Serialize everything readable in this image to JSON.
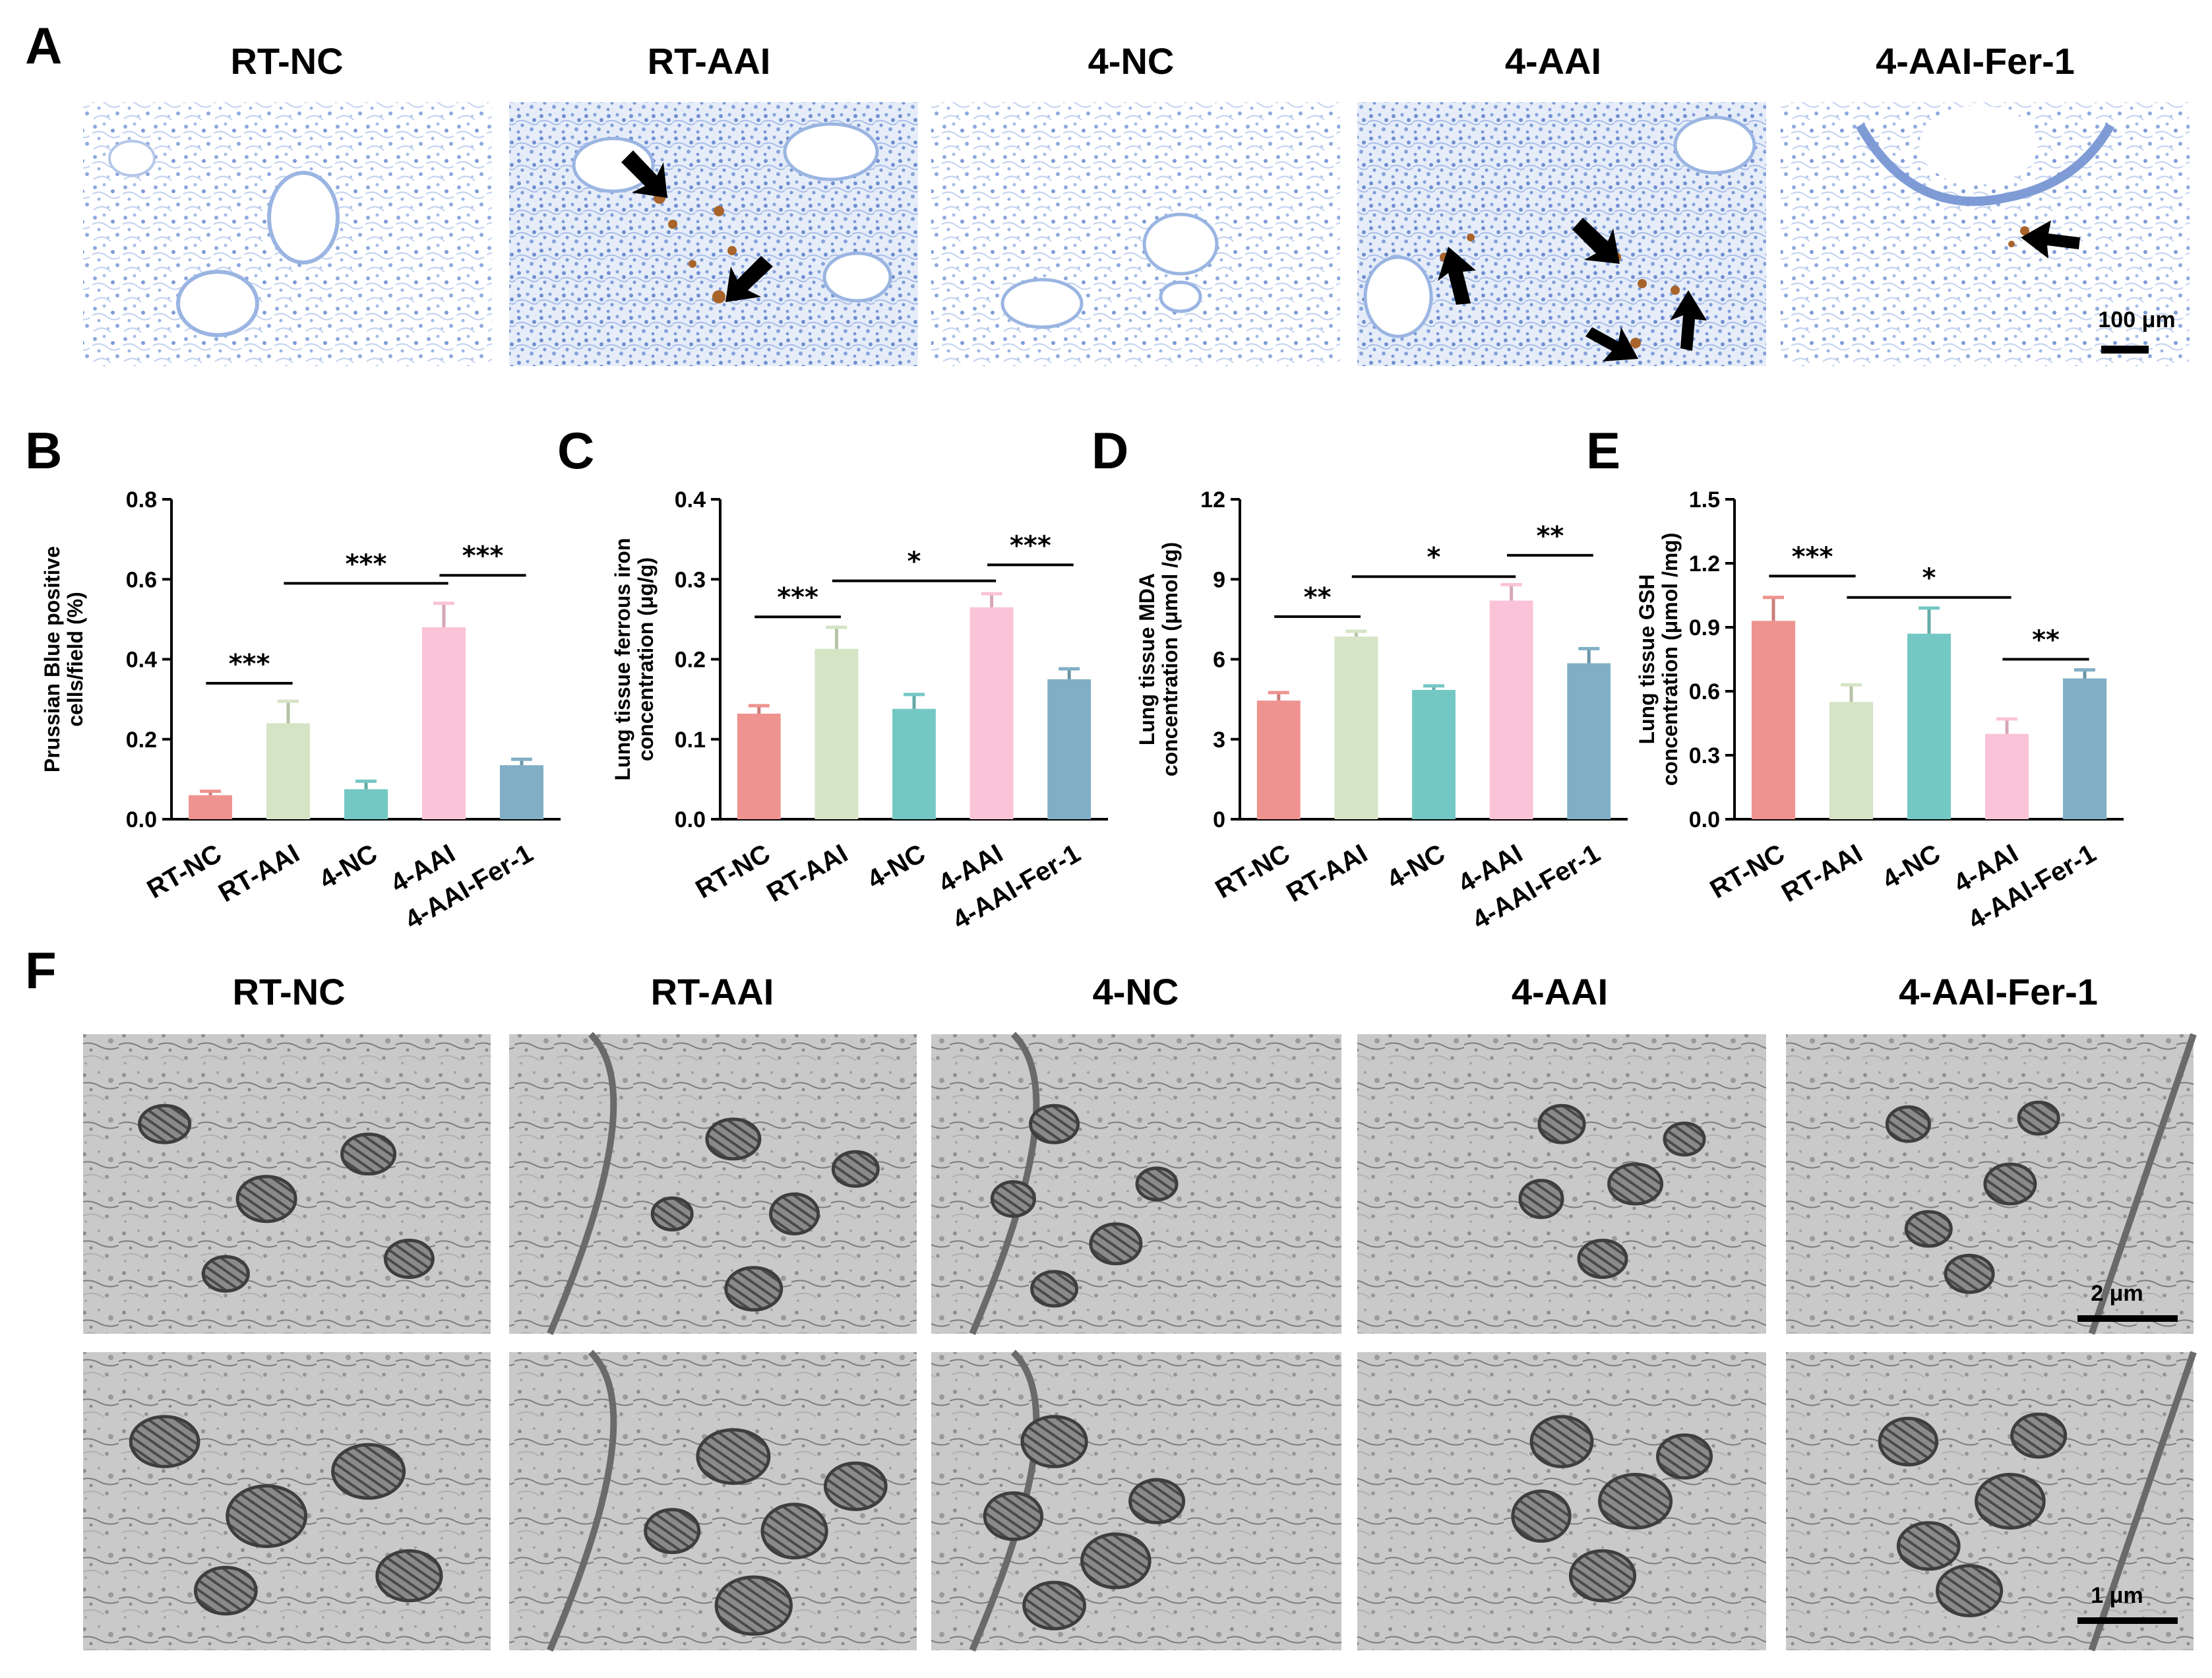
{
  "panels": {
    "A": "A",
    "B": "B",
    "C": "C",
    "D": "D",
    "E": "E",
    "F": "F"
  },
  "groups": [
    "RT-NC",
    "RT-AAI",
    "4-NC",
    "4-AAI",
    "4-AAI-Fer-1"
  ],
  "scale_bars": {
    "histology": "100 μm",
    "tem_top": "2 μm",
    "tem_bottom": "1 μm"
  },
  "image_tiles": {
    "histology_icon": "lung-histology-micrograph",
    "tem_icon": "tem-micrograph",
    "arrow_icon": "black-arrow-icon"
  },
  "colors": {
    "RT-NC": "#EE938F",
    "RT-AAI": "#D5E4C5",
    "4-NC": "#74C8C4",
    "4-AAI": "#FBC3D8",
    "4-AAI-Fer-1": "#80AFC5",
    "tissue_blue": "#9AB5E2",
    "stain_brown": "#A8642A"
  },
  "chart_data": [
    {
      "panel": "B",
      "type": "bar",
      "categories": [
        "RT-NC",
        "RT-AAI",
        "4-NC",
        "4-AAI",
        "4-AAI-Fer-1"
      ],
      "values": [
        0.06,
        0.24,
        0.075,
        0.48,
        0.135
      ],
      "errors": [
        0.01,
        0.055,
        0.02,
        0.06,
        0.015
      ],
      "ylabel_lines": [
        "Prussian Blue  positive",
        "cells/field  (%)"
      ],
      "ylim": [
        0,
        0.8
      ],
      "yticks": [
        "0.0",
        "0.2",
        "0.4",
        "0.6",
        "0.8"
      ],
      "significance": [
        {
          "from": 0,
          "to": 1,
          "label": "***",
          "y": 0.34
        },
        {
          "from": 1,
          "to": 3,
          "label": "***",
          "y": 0.59
        },
        {
          "from": 3,
          "to": 4,
          "label": "***",
          "y": 0.61
        }
      ]
    },
    {
      "panel": "C",
      "type": "bar",
      "categories": [
        "RT-NC",
        "RT-AAI",
        "4-NC",
        "4-AAI",
        "4-AAI-Fer-1"
      ],
      "values": [
        0.132,
        0.213,
        0.138,
        0.265,
        0.175
      ],
      "errors": [
        0.01,
        0.027,
        0.018,
        0.017,
        0.013
      ],
      "ylabel_lines": [
        "Lung tissue ferrous iron",
        "concentration (μg/g)"
      ],
      "ylim": [
        0,
        0.4
      ],
      "yticks": [
        "0.0",
        "0.1",
        "0.2",
        "0.3",
        "0.4"
      ],
      "significance": [
        {
          "from": 0,
          "to": 1,
          "label": "***",
          "y": 0.253
        },
        {
          "from": 1,
          "to": 3,
          "label": "*",
          "y": 0.298
        },
        {
          "from": 3,
          "to": 4,
          "label": "***",
          "y": 0.318
        }
      ]
    },
    {
      "panel": "D",
      "type": "bar",
      "categories": [
        "RT-NC",
        "RT-AAI",
        "4-NC",
        "4-AAI",
        "4-AAI-Fer-1"
      ],
      "values": [
        4.45,
        6.85,
        4.85,
        8.2,
        5.85
      ],
      "errors": [
        0.3,
        0.2,
        0.15,
        0.6,
        0.55
      ],
      "ylabel_lines": [
        "Lung tissue MDA",
        "concentration (μmol /g)"
      ],
      "ylim": [
        0,
        12
      ],
      "yticks": [
        "0",
        "3",
        "6",
        "9",
        "12"
      ],
      "significance": [
        {
          "from": 0,
          "to": 1,
          "label": "**",
          "y": 7.6
        },
        {
          "from": 1,
          "to": 3,
          "label": "*",
          "y": 9.1
        },
        {
          "from": 3,
          "to": 4,
          "label": "**",
          "y": 9.9
        }
      ]
    },
    {
      "panel": "E",
      "type": "bar",
      "categories": [
        "RT-NC",
        "RT-AAI",
        "4-NC",
        "4-AAI",
        "4-AAI-Fer-1"
      ],
      "values": [
        0.93,
        0.55,
        0.87,
        0.4,
        0.66
      ],
      "errors": [
        0.11,
        0.08,
        0.12,
        0.07,
        0.04
      ],
      "ylabel_lines": [
        "Lung tissue GSH",
        "concentration (μmol /mg)"
      ],
      "ylim": [
        0,
        1.5
      ],
      "yticks": [
        "0.0",
        "0.3",
        "0.6",
        "0.9",
        "1.2",
        "1.5"
      ],
      "significance": [
        {
          "from": 0,
          "to": 1,
          "label": "***",
          "y": 1.14
        },
        {
          "from": 1,
          "to": 3,
          "label": "*",
          "y": 1.04
        },
        {
          "from": 3,
          "to": 4,
          "label": "**",
          "y": 0.75
        }
      ]
    }
  ]
}
